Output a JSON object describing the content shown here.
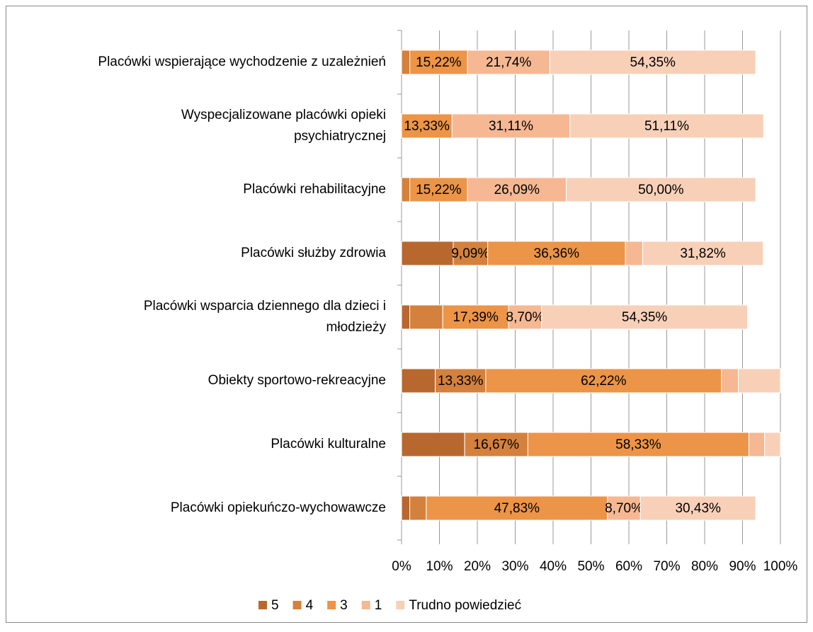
{
  "chart_data": {
    "type": "stacked_barh",
    "categories": [
      [
        "Placówki wspierające wychodzenie z uzależnień"
      ],
      [
        "Wyspecjalizowane placówki opieki",
        "psychiatrycznej"
      ],
      [
        "Placówki rehabilitacyjne"
      ],
      [
        "Placówki służby zdrowia"
      ],
      [
        "Placówki wsparcia dziennego dla dzieci i",
        "młodzieży"
      ],
      [
        "Obiekty sportowo-rekreacyjne"
      ],
      [
        "Placówki kulturalne"
      ],
      [
        "Placówki opiekuńczo-wychowawcze"
      ]
    ],
    "series": [
      {
        "name": "5",
        "color": "#b8682f",
        "values": [
          0,
          0,
          0,
          13.64,
          2.17,
          8.89,
          16.67,
          2.17
        ],
        "value_labels": [
          null,
          null,
          null,
          null,
          null,
          null,
          null,
          null
        ]
      },
      {
        "name": "4",
        "color": "#d4813d",
        "values": [
          2.17,
          0,
          2.17,
          9.09,
          8.7,
          13.33,
          16.67,
          4.35
        ],
        "value_labels": [
          null,
          null,
          null,
          "9,09%",
          null,
          "13,33%",
          "16,67%",
          null
        ]
      },
      {
        "name": "3",
        "color": "#ec9447",
        "values": [
          15.22,
          13.33,
          15.22,
          36.36,
          17.39,
          62.22,
          58.33,
          47.83
        ],
        "value_labels": [
          "15,22%",
          "13,33%",
          "15,22%",
          "36,36%",
          "17,39%",
          "62,22%",
          "58,33%",
          "47,83%"
        ]
      },
      {
        "name": "1",
        "color": "#f5b893",
        "values": [
          21.74,
          31.11,
          26.09,
          4.55,
          8.7,
          4.44,
          4.17,
          8.7
        ],
        "value_labels": [
          "21,74%",
          "31,11%",
          "26,09%",
          null,
          "8,70%",
          null,
          null,
          "8,70%"
        ]
      },
      {
        "name": "Trudno powiedzieć",
        "color": "#f8d0b8",
        "values": [
          54.35,
          51.11,
          50,
          31.82,
          54.35,
          11.11,
          4.17,
          30.43
        ],
        "value_labels": [
          "54,35%",
          "51,11%",
          "50,00%",
          "31,82%",
          "54,35%",
          null,
          null,
          "30,43%"
        ]
      }
    ],
    "xlim": [
      0,
      100
    ],
    "xticks": [
      {
        "value": 0,
        "label": "0%"
      },
      {
        "value": 10,
        "label": "10%"
      },
      {
        "value": 20,
        "label": "20%"
      },
      {
        "value": 30,
        "label": "30%"
      },
      {
        "value": 40,
        "label": "40%"
      },
      {
        "value": 50,
        "label": "50%"
      },
      {
        "value": 60,
        "label": "60%"
      },
      {
        "value": 70,
        "label": "70%"
      },
      {
        "value": 80,
        "label": "80%"
      },
      {
        "value": 90,
        "label": "90%"
      },
      {
        "value": 100,
        "label": "100%"
      }
    ],
    "grid": true,
    "legend": "bottom"
  }
}
